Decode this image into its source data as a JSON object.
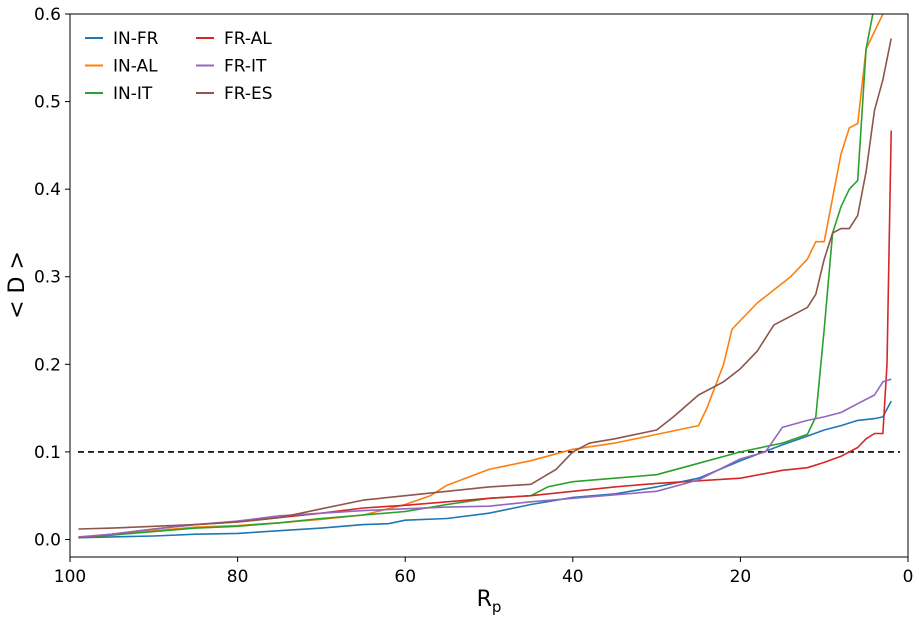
{
  "chart_data": {
    "type": "line",
    "xlabel": "R",
    "xlabel_sub": "p",
    "ylabel": "< D >",
    "xlim": [
      100,
      0
    ],
    "ylim": [
      -0.02,
      0.6
    ],
    "x_ticks": [
      100,
      80,
      60,
      40,
      20,
      0
    ],
    "y_ticks": [
      0.0,
      0.1,
      0.2,
      0.3,
      0.4,
      0.5,
      0.6
    ],
    "x_tick_labels": [
      "100",
      "80",
      "60",
      "40",
      "20",
      "0"
    ],
    "y_tick_labels": [
      "0.0",
      "0.1",
      "0.2",
      "0.3",
      "0.4",
      "0.5",
      "0.6"
    ],
    "grid": false,
    "legend_position": "top-left",
    "reference_line": {
      "y": 0.1,
      "style": "dashed",
      "color": "#000000"
    },
    "series": [
      {
        "name": "IN-FR",
        "color": "#1f77b4",
        "x": [
          99,
          95,
          90,
          85,
          80,
          75,
          70,
          65,
          62,
          60,
          55,
          50,
          45,
          40,
          35,
          30,
          25,
          20,
          15,
          12,
          10,
          8,
          6,
          4,
          3,
          2
        ],
        "y": [
          0.002,
          0.003,
          0.004,
          0.006,
          0.007,
          0.01,
          0.013,
          0.017,
          0.018,
          0.022,
          0.024,
          0.03,
          0.04,
          0.048,
          0.052,
          0.06,
          0.07,
          0.09,
          0.108,
          0.118,
          0.125,
          0.13,
          0.136,
          0.138,
          0.14,
          0.158
        ]
      },
      {
        "name": "IN-AL",
        "color": "#ff7f0e",
        "x": [
          99,
          95,
          90,
          85,
          80,
          75,
          70,
          65,
          60,
          57,
          55,
          50,
          45,
          40,
          35,
          30,
          25,
          24,
          22,
          21,
          20,
          18,
          16,
          14,
          12,
          11,
          10,
          9,
          8,
          7,
          6,
          5,
          4,
          3
        ],
        "y": [
          0.002,
          0.005,
          0.01,
          0.014,
          0.016,
          0.019,
          0.023,
          0.028,
          0.04,
          0.05,
          0.062,
          0.08,
          0.09,
          0.103,
          0.11,
          0.12,
          0.13,
          0.15,
          0.2,
          0.24,
          0.25,
          0.27,
          0.285,
          0.3,
          0.32,
          0.34,
          0.34,
          0.39,
          0.44,
          0.47,
          0.475,
          0.56,
          0.58,
          0.6
        ]
      },
      {
        "name": "IN-IT",
        "color": "#2ca02c",
        "x": [
          99,
          95,
          90,
          85,
          80,
          75,
          70,
          65,
          60,
          55,
          50,
          45,
          43,
          40,
          35,
          30,
          25,
          20,
          15,
          12,
          11,
          10,
          9,
          8,
          7,
          6,
          5,
          4.2
        ],
        "y": [
          0.002,
          0.005,
          0.009,
          0.013,
          0.015,
          0.019,
          0.024,
          0.028,
          0.032,
          0.04,
          0.047,
          0.05,
          0.06,
          0.066,
          0.07,
          0.074,
          0.087,
          0.1,
          0.11,
          0.12,
          0.14,
          0.24,
          0.35,
          0.38,
          0.4,
          0.41,
          0.56,
          0.6
        ]
      },
      {
        "name": "FR-AL",
        "color": "#d62728",
        "x": [
          99,
          95,
          90,
          85,
          80,
          75,
          70,
          65,
          60,
          55,
          50,
          45,
          40,
          35,
          30,
          25,
          20,
          15,
          12,
          10,
          8,
          6,
          5,
          4,
          3,
          2.5,
          2
        ],
        "y": [
          0.002,
          0.006,
          0.012,
          0.017,
          0.02,
          0.025,
          0.03,
          0.036,
          0.039,
          0.043,
          0.047,
          0.05,
          0.055,
          0.06,
          0.064,
          0.067,
          0.07,
          0.079,
          0.082,
          0.088,
          0.095,
          0.105,
          0.115,
          0.121,
          0.121,
          0.2,
          0.467
        ]
      },
      {
        "name": "FR-IT",
        "color": "#9467bd",
        "x": [
          99,
          95,
          90,
          85,
          80,
          75,
          70,
          65,
          60,
          55,
          50,
          45,
          40,
          35,
          30,
          25,
          20,
          17,
          15,
          12,
          10,
          8,
          6,
          4,
          3,
          2
        ],
        "y": [
          0.003,
          0.006,
          0.012,
          0.017,
          0.021,
          0.027,
          0.03,
          0.033,
          0.035,
          0.037,
          0.038,
          0.043,
          0.047,
          0.051,
          0.055,
          0.068,
          0.092,
          0.1,
          0.128,
          0.136,
          0.14,
          0.145,
          0.155,
          0.165,
          0.18,
          0.183
        ]
      },
      {
        "name": "FR-ES",
        "color": "#8c564b",
        "x": [
          99,
          95,
          90,
          85,
          80,
          75,
          70,
          65,
          60,
          55,
          50,
          45,
          42,
          40,
          38,
          35,
          30,
          28,
          25,
          22,
          20,
          18,
          16,
          14,
          12,
          11,
          10,
          9,
          8,
          7,
          6,
          5,
          4,
          3,
          2
        ],
        "y": [
          0.012,
          0.013,
          0.015,
          0.017,
          0.02,
          0.025,
          0.035,
          0.045,
          0.05,
          0.055,
          0.06,
          0.063,
          0.08,
          0.1,
          0.11,
          0.115,
          0.125,
          0.14,
          0.165,
          0.18,
          0.195,
          0.215,
          0.245,
          0.255,
          0.265,
          0.28,
          0.32,
          0.35,
          0.355,
          0.355,
          0.37,
          0.42,
          0.49,
          0.525,
          0.572
        ]
      }
    ]
  }
}
